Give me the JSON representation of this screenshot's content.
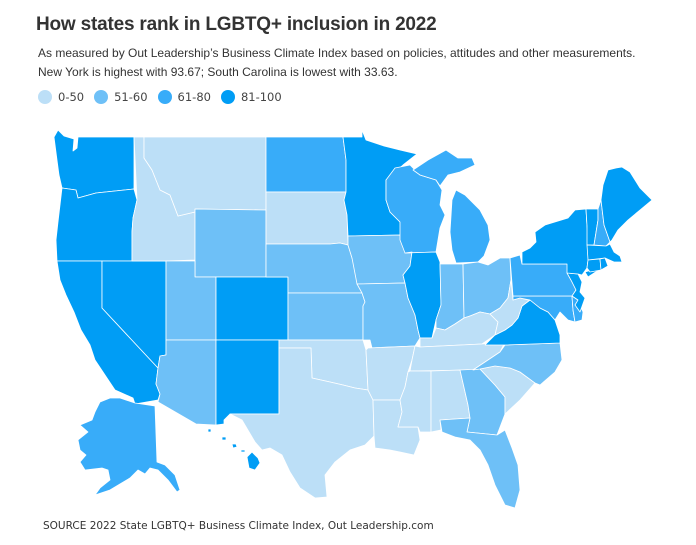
{
  "header": {
    "title": "How states rank in LGBTQ+ inclusion in 2022",
    "subtitle_line1": "As measured by Out Leadership’s Business Climate Index based on policies, attitudes and other measurements.",
    "subtitle_line2": "New York is highest with 93.67; South Carolina is lowest with 33.63."
  },
  "legend": [
    {
      "label": "0-50",
      "color": "#bcdff7"
    },
    {
      "label": "51-60",
      "color": "#6ec0f7"
    },
    {
      "label": "61-80",
      "color": "#38acf9"
    },
    {
      "label": "81-100",
      "color": "#009df5"
    }
  ],
  "map_data": {
    "type": "choropleth",
    "bins": [
      "0-50",
      "51-60",
      "61-80",
      "81-100"
    ],
    "states": {
      "WA": "81-100",
      "OR": "81-100",
      "CA": "81-100",
      "NV": "81-100",
      "ID": "0-50",
      "MT": "0-50",
      "WY": "51-60",
      "UT": "51-60",
      "AZ": "51-60",
      "CO": "81-100",
      "NM": "81-100",
      "ND": "61-80",
      "SD": "0-50",
      "NE": "51-60",
      "KS": "51-60",
      "OK": "0-50",
      "TX": "0-50",
      "MN": "81-100",
      "IA": "51-60",
      "MO": "51-60",
      "AR": "0-50",
      "LA": "0-50",
      "WI": "61-80",
      "IL": "81-100",
      "MI": "61-80",
      "IN": "51-60",
      "OH": "51-60",
      "KY": "0-50",
      "TN": "0-50",
      "MS": "0-50",
      "AL": "0-50",
      "GA": "51-60",
      "FL": "51-60",
      "SC": "0-50",
      "NC": "51-60",
      "VA": "81-100",
      "WV": "0-50",
      "PA": "61-80",
      "NY": "81-100",
      "VT": "81-100",
      "NH": "61-80",
      "ME": "81-100",
      "MA": "81-100",
      "CT": "81-100",
      "RI": "81-100",
      "NJ": "81-100",
      "DE": "61-80",
      "MD": "61-80",
      "AK": "61-80",
      "HI": "81-100"
    }
  },
  "footer": {
    "source": "SOURCE 2022 State LGBTQ+ Business Climate Index, Out Leadership.com"
  }
}
